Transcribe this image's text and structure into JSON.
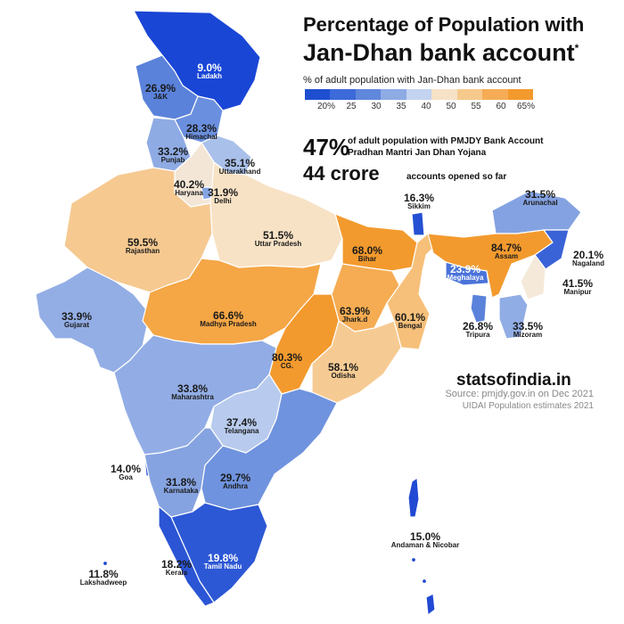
{
  "title_line1": "Percentage of Population with",
  "title_line2": "Jan-Dhan bank account",
  "title_mark": "*",
  "legend_caption": "% of adult population with Jan-Dhan bank account",
  "legend_ticks": [
    "20%",
    "25",
    "30",
    "35",
    "40",
    "50",
    "55",
    "60",
    "65%"
  ],
  "legend_colors": [
    "#1f4fd1",
    "#3d6ad9",
    "#5f87db",
    "#8eabe4",
    "#c3d3f0",
    "#f6e2c6",
    "#f6c98c",
    "#f5ac55",
    "#f39a2e"
  ],
  "stats": {
    "pct_value": "47%",
    "pct_line1": "of adult population with PMJDY Bank Account",
    "pct_line2": "Pradhan Mantri Jan Dhan Yojana",
    "accounts_value": "44 crore",
    "accounts_text": "accounts opened so far"
  },
  "brand": "statsofindia.in",
  "source_line1": "Source: pmjdy.gov.in on Dec 2021",
  "source_line2": "UIDAI Population estimates 2021",
  "regions": [
    {
      "name": "Ladakh",
      "value": "9.0%",
      "color": "#1a46d6",
      "light": true
    },
    {
      "name": "J&K",
      "value": "26.9%",
      "color": "#5a82da",
      "light": false
    },
    {
      "name": "Himachal",
      "value": "28.3%",
      "color": "#6a8fde",
      "light": false
    },
    {
      "name": "Punjab",
      "value": "33.2%",
      "color": "#8fabe4",
      "light": false
    },
    {
      "name": "Uttarakhand",
      "value": "35.1%",
      "color": "#a9c0ea",
      "light": false
    },
    {
      "name": "Haryana",
      "value": "40.2%",
      "color": "#f3e6d6",
      "light": false
    },
    {
      "name": "Delhi",
      "value": "31.9%",
      "color": "#86a4e2",
      "light": false
    },
    {
      "name": "Rajasthan",
      "value": "59.5%",
      "color": "#f6c991",
      "light": false
    },
    {
      "name": "Uttar Pradesh",
      "value": "51.5%",
      "color": "#f8e2c5",
      "light": false
    },
    {
      "name": "Bihar",
      "value": "68.0%",
      "color": "#f39a2e",
      "light": false
    },
    {
      "name": "Sikkim",
      "value": "16.3%",
      "color": "#2550d3",
      "light": false
    },
    {
      "name": "Arunachal",
      "value": "31.5%",
      "color": "#84a2e1",
      "light": false
    },
    {
      "name": "Assam",
      "value": "84.7%",
      "color": "#f39a2e",
      "light": false
    },
    {
      "name": "Nagaland",
      "value": "20.1%",
      "color": "#3a63d8",
      "light": false
    },
    {
      "name": "Meghalaya",
      "value": "23.9%",
      "color": "#4a73d9",
      "light": true
    },
    {
      "name": "Manipur",
      "value": "41.5%",
      "color": "#f5e9da",
      "light": false
    },
    {
      "name": "Tripura",
      "value": "26.8%",
      "color": "#5b82da",
      "light": false
    },
    {
      "name": "Mizoram",
      "value": "33.5%",
      "color": "#91ade5",
      "light": false
    },
    {
      "name": "Gujarat",
      "value": "33.9%",
      "color": "#93aee5",
      "light": false
    },
    {
      "name": "Madhya Pradesh",
      "value": "66.6%",
      "color": "#f5a645",
      "light": false
    },
    {
      "name": "Jhark.d",
      "value": "63.9%",
      "color": "#f5ac52",
      "light": false
    },
    {
      "name": "Bengal",
      "value": "60.1%",
      "color": "#f6c07a",
      "light": false
    },
    {
      "name": "CG.",
      "value": "80.3%",
      "color": "#f39a2e",
      "light": false
    },
    {
      "name": "Odisha",
      "value": "58.1%",
      "color": "#f6cb93",
      "light": false
    },
    {
      "name": "Maharashtra",
      "value": "33.8%",
      "color": "#92ade5",
      "light": false
    },
    {
      "name": "Telangana",
      "value": "37.4%",
      "color": "#b8cbee",
      "light": false
    },
    {
      "name": "Goa",
      "value": "14.0%",
      "color": "#2149d3",
      "light": false
    },
    {
      "name": "Karnataka",
      "value": "31.8%",
      "color": "#86a3e1",
      "light": false
    },
    {
      "name": "Andhra",
      "value": "29.7%",
      "color": "#6f93de",
      "light": false
    },
    {
      "name": "Tamil Nadu",
      "value": "19.8%",
      "color": "#2d58d5",
      "light": true
    },
    {
      "name": "Kerala",
      "value": "18.2%",
      "color": "#2b55d4",
      "light": false
    },
    {
      "name": "Lakshadweep",
      "value": "11.8%",
      "color": "#1a46d6",
      "light": false
    },
    {
      "name": "Andaman & Nicobar",
      "value": "15.0%",
      "color": "#2149d3",
      "light": false
    }
  ]
}
